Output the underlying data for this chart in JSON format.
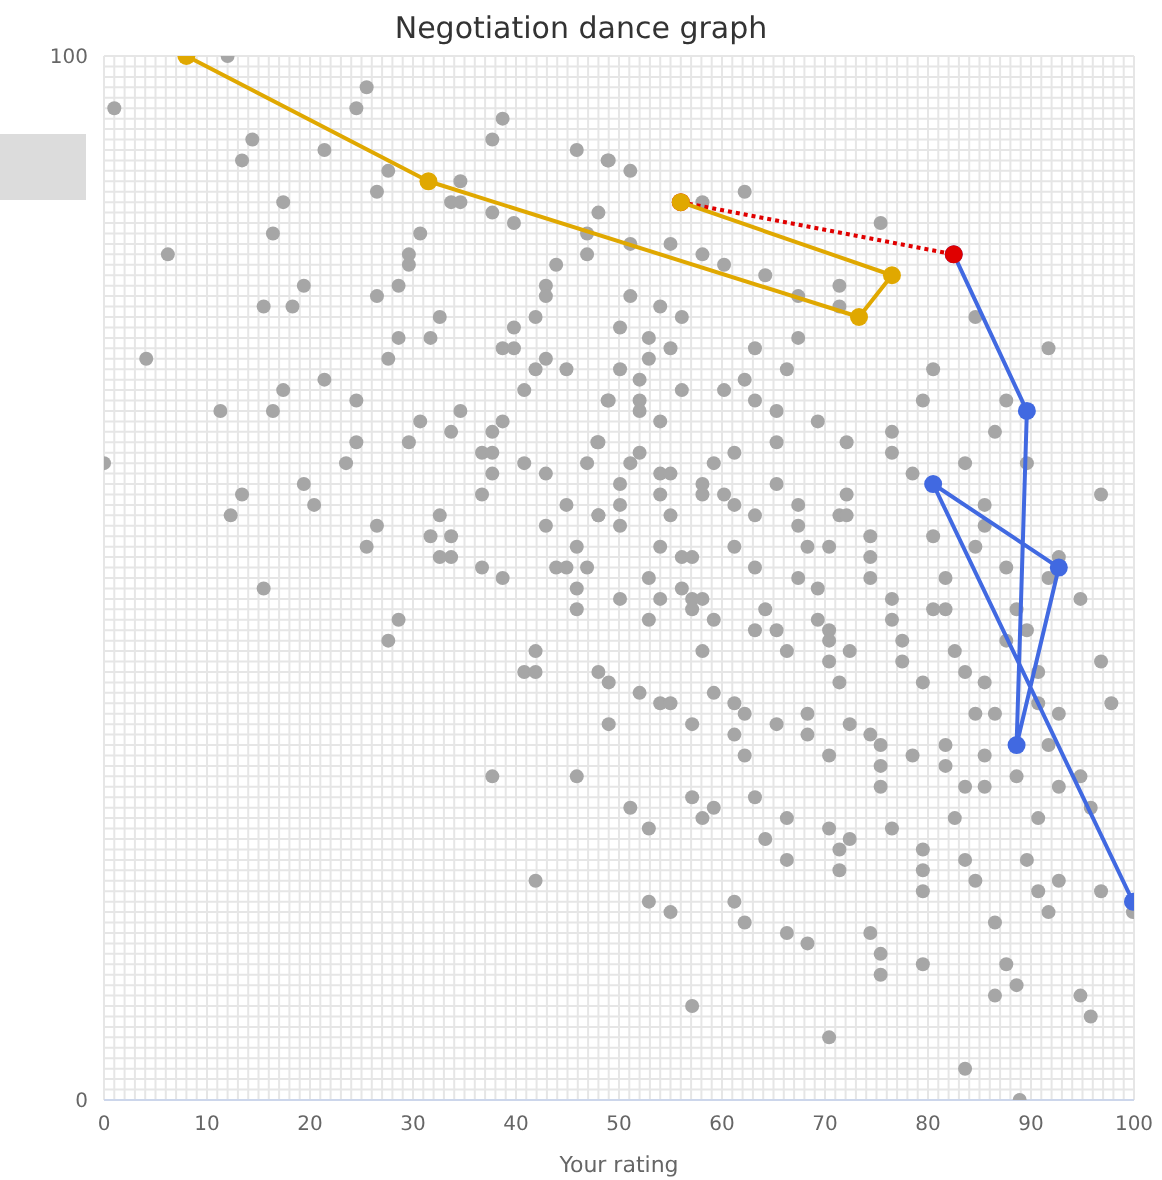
{
  "chart_data": {
    "type": "scatter",
    "title": "Negotiation dance graph",
    "xlabel": "Your rating",
    "xlim": [
      0,
      100
    ],
    "ylim": [
      0,
      100
    ],
    "grid": true,
    "legend": false,
    "marker": "circle",
    "xticks": [
      0,
      {
        "value": 1,
        "label": null
      },
      {
        "value": 2,
        "label": null
      },
      {
        "value": 3,
        "label": null
      },
      {
        "value": 4,
        "label": null
      },
      {
        "value": 5,
        "label": null
      },
      {
        "value": 6,
        "label": null
      },
      {
        "value": 7,
        "label": null
      },
      {
        "value": 8,
        "label": null
      },
      {
        "value": 9,
        "label": null
      },
      10,
      {
        "value": 11,
        "label": null
      },
      {
        "value": 12,
        "label": null
      },
      {
        "value": 13,
        "label": null
      },
      {
        "value": 14,
        "label": null
      },
      {
        "value": 15,
        "label": null
      },
      {
        "value": 16,
        "label": null
      },
      {
        "value": 17,
        "label": null
      },
      {
        "value": 18,
        "label": null
      },
      {
        "value": 19,
        "label": null
      },
      20,
      {
        "value": 21,
        "label": null
      },
      {
        "value": 22,
        "label": null
      },
      {
        "value": 23,
        "label": null
      },
      {
        "value": 24,
        "label": null
      },
      {
        "value": 25,
        "label": null
      },
      {
        "value": 26,
        "label": null
      },
      {
        "value": 27,
        "label": null
      },
      {
        "value": 28,
        "label": null
      },
      {
        "value": 29,
        "label": null
      },
      30,
      {
        "value": 31,
        "label": null
      },
      {
        "value": 32,
        "label": null
      },
      {
        "value": 33,
        "label": null
      },
      {
        "value": 34,
        "label": null
      },
      {
        "value": 35,
        "label": null
      },
      {
        "value": 36,
        "label": null
      },
      {
        "value": 37,
        "label": null
      },
      {
        "value": 38,
        "label": null
      },
      {
        "value": 39,
        "label": null
      },
      40,
      {
        "value": 41,
        "label": null
      },
      {
        "value": 42,
        "label": null
      },
      {
        "value": 43,
        "label": null
      },
      {
        "value": 44,
        "label": null
      },
      {
        "value": 45,
        "label": null
      },
      {
        "value": 46,
        "label": null
      },
      {
        "value": 47,
        "label": null
      },
      {
        "value": 48,
        "label": null
      },
      {
        "value": 49,
        "label": null
      },
      50,
      {
        "value": 51,
        "label": null
      },
      {
        "value": 52,
        "label": null
      },
      {
        "value": 53,
        "label": null
      },
      {
        "value": 54,
        "label": null
      },
      {
        "value": 55,
        "label": null
      },
      {
        "value": 56,
        "label": null
      },
      {
        "value": 57,
        "label": null
      },
      {
        "value": 58,
        "label": null
      },
      {
        "value": 59,
        "label": null
      },
      60,
      {
        "value": 61,
        "label": null
      },
      {
        "value": 62,
        "label": null
      },
      {
        "value": 63,
        "label": null
      },
      {
        "value": 64,
        "label": null
      },
      {
        "value": 65,
        "label": null
      },
      {
        "value": 66,
        "label": null
      },
      {
        "value": 67,
        "label": null
      },
      {
        "value": 68,
        "label": null
      },
      {
        "value": 69,
        "label": null
      },
      70,
      {
        "value": 71,
        "label": null
      },
      {
        "value": 72,
        "label": null
      },
      {
        "value": 73,
        "label": null
      },
      {
        "value": 74,
        "label": null
      },
      {
        "value": 75,
        "label": null
      },
      {
        "value": 76,
        "label": null
      },
      {
        "value": 77,
        "label": null
      },
      {
        "value": 78,
        "label": null
      },
      {
        "value": 79,
        "label": null
      },
      80,
      {
        "value": 81,
        "label": null
      },
      {
        "value": 82,
        "label": null
      },
      {
        "value": 83,
        "label": null
      },
      {
        "value": 84,
        "label": null
      },
      {
        "value": 85,
        "label": null
      },
      {
        "value": 86,
        "label": null
      },
      {
        "value": 87,
        "label": null
      },
      {
        "value": 88,
        "label": null
      },
      {
        "value": 89,
        "label": null
      },
      90,
      {
        "value": 91,
        "label": null
      },
      {
        "value": 92,
        "label": null
      },
      {
        "value": 93,
        "label": null
      },
      {
        "value": 94,
        "label": null
      },
      {
        "value": 95,
        "label": null
      },
      {
        "value": 96,
        "label": null
      },
      {
        "value": 97,
        "label": null
      },
      {
        "value": 98,
        "label": null
      },
      {
        "value": 99,
        "label": null
      },
      100
    ],
    "yticks": [
      0,
      {
        "value": 1,
        "label": null
      },
      {
        "value": 2,
        "label": null
      },
      {
        "value": 3,
        "label": null
      },
      {
        "value": 4,
        "label": null
      },
      {
        "value": 5,
        "label": null
      },
      {
        "value": 6,
        "label": null
      },
      {
        "value": 7,
        "label": null
      },
      {
        "value": 8,
        "label": null
      },
      {
        "value": 9,
        "label": null
      },
      {
        "value": 10,
        "label": null
      },
      {
        "value": 11,
        "label": null
      },
      {
        "value": 12,
        "label": null
      },
      {
        "value": 13,
        "label": null
      },
      {
        "value": 14,
        "label": null
      },
      {
        "value": 15,
        "label": null
      },
      {
        "value": 16,
        "label": null
      },
      {
        "value": 17,
        "label": null
      },
      {
        "value": 18,
        "label": null
      },
      {
        "value": 19,
        "label": null
      },
      {
        "value": 20,
        "label": null
      },
      {
        "value": 21,
        "label": null
      },
      {
        "value": 22,
        "label": null
      },
      {
        "value": 23,
        "label": null
      },
      {
        "value": 24,
        "label": null
      },
      {
        "value": 25,
        "label": null
      },
      {
        "value": 26,
        "label": null
      },
      {
        "value": 27,
        "label": null
      },
      {
        "value": 28,
        "label": null
      },
      {
        "value": 29,
        "label": null
      },
      {
        "value": 30,
        "label": null
      },
      {
        "value": 31,
        "label": null
      },
      {
        "value": 32,
        "label": null
      },
      {
        "value": 33,
        "label": null
      },
      {
        "value": 34,
        "label": null
      },
      {
        "value": 35,
        "label": null
      },
      {
        "value": 36,
        "label": null
      },
      {
        "value": 37,
        "label": null
      },
      {
        "value": 38,
        "label": null
      },
      {
        "value": 39,
        "label": null
      },
      {
        "value": 40,
        "label": null
      },
      {
        "value": 41,
        "label": null
      },
      {
        "value": 42,
        "label": null
      },
      {
        "value": 43,
        "label": null
      },
      {
        "value": 44,
        "label": null
      },
      {
        "value": 45,
        "label": null
      },
      {
        "value": 46,
        "label": null
      },
      {
        "value": 47,
        "label": null
      },
      {
        "value": 48,
        "label": null
      },
      {
        "value": 49,
        "label": null
      },
      {
        "value": 50,
        "label": null
      },
      {
        "value": 51,
        "label": null
      },
      {
        "value": 52,
        "label": null
      },
      {
        "value": 53,
        "label": null
      },
      {
        "value": 54,
        "label": null
      },
      {
        "value": 55,
        "label": null
      },
      {
        "value": 56,
        "label": null
      },
      {
        "value": 57,
        "label": null
      },
      {
        "value": 58,
        "label": null
      },
      {
        "value": 59,
        "label": null
      },
      {
        "value": 60,
        "label": null
      },
      {
        "value": 61,
        "label": null
      },
      {
        "value": 62,
        "label": null
      },
      {
        "value": 63,
        "label": null
      },
      {
        "value": 64,
        "label": null
      },
      {
        "value": 65,
        "label": null
      },
      {
        "value": 66,
        "label": null
      },
      {
        "value": 67,
        "label": null
      },
      {
        "value": 68,
        "label": null
      },
      {
        "value": 69,
        "label": null
      },
      {
        "value": 70,
        "label": null
      },
      {
        "value": 71,
        "label": null
      },
      {
        "value": 72,
        "label": null
      },
      {
        "value": 73,
        "label": null
      },
      {
        "value": 74,
        "label": null
      },
      {
        "value": 75,
        "label": null
      },
      {
        "value": 76,
        "label": null
      },
      {
        "value": 77,
        "label": null
      },
      {
        "value": 78,
        "label": null
      },
      {
        "value": 79,
        "label": null
      },
      {
        "value": 80,
        "label": null
      },
      {
        "value": 81,
        "label": null
      },
      {
        "value": 82,
        "label": null
      },
      {
        "value": 83,
        "label": null
      },
      {
        "value": 84,
        "label": null
      },
      {
        "value": 85,
        "label": null
      },
      {
        "value": 86,
        "label": null
      },
      {
        "value": 87,
        "label": null
      },
      {
        "value": 88,
        "label": null
      },
      {
        "value": 89,
        "label": null
      },
      {
        "value": 90,
        "label": null
      },
      {
        "value": 91,
        "label": null
      },
      {
        "value": 92,
        "label": null
      },
      {
        "value": 93,
        "label": null
      },
      {
        "value": 94,
        "label": null
      },
      {
        "value": 95,
        "label": null
      },
      {
        "value": 96,
        "label": null
      },
      {
        "value": 97,
        "label": null
      },
      {
        "value": 98,
        "label": null
      },
      {
        "value": 99,
        "label": null
      },
      100
    ],
    "series": [
      {
        "type": "scatter",
        "color": "#a6a6a6",
        "x": [
          12,
          1,
          25.5,
          24.5,
          14.4,
          13.4,
          21.4,
          38.7,
          37.7,
          45.9,
          48.9,
          27.6,
          26.5,
          34.6,
          33.7,
          34.6,
          37.7,
          39.8,
          17.4,
          16.4,
          6.2,
          46.9,
          46.9,
          43.9,
          30.7,
          29.6,
          29.6,
          19.4,
          28.6,
          26.5,
          42.9,
          42.9,
          15.5,
          18.3,
          41.9,
          32.6,
          39.8,
          28.6,
          31.7,
          38.7,
          39.8,
          27.6,
          42.9,
          41.9,
          44.9,
          4.1,
          40.8,
          21.4,
          17.4,
          24.5,
          48.9,
          11.3,
          16.4,
          34.6,
          38.7,
          30.7,
          33.7,
          37.7,
          29.6,
          24.5,
          47.9,
          36.7,
          37.7,
          0,
          23.5,
          40.8,
          46.9,
          37.7,
          42.9,
          19.4,
          13.4,
          36.7,
          20.4,
          12.3,
          32.6,
          44.9,
          48,
          26.5,
          42.9,
          31.7,
          33.7,
          25.5,
          45.9,
          32.6,
          33.7,
          36.7,
          38.7,
          43.9,
          44.9,
          46.9
        ],
        "values": [
          100,
          95,
          97,
          95,
          92,
          90,
          91,
          94,
          92,
          91,
          90,
          89,
          87,
          88,
          86,
          86,
          85,
          84,
          86,
          83,
          81,
          83,
          81,
          80,
          83,
          81,
          80,
          78,
          78,
          77,
          78,
          77,
          76,
          76,
          75,
          75,
          74,
          73,
          73,
          72,
          72,
          71,
          71,
          70,
          70,
          71,
          68,
          69,
          68,
          67,
          67,
          66,
          66,
          66,
          65,
          65,
          64,
          64,
          63,
          63,
          63,
          62,
          62,
          61,
          61,
          61,
          61,
          60,
          60,
          59,
          58,
          58,
          57,
          56,
          56,
          57,
          56,
          55,
          55,
          54,
          54,
          53,
          53,
          52,
          52,
          51,
          50,
          51,
          51,
          51
        ]
      },
      {
        "type": "scatter",
        "color": "#a6a6a6",
        "x": [
          49,
          51.1,
          48,
          58.1,
          62.2,
          75.4,
          51.1,
          55,
          58.1,
          60.2,
          64.2,
          71.4,
          67.4,
          71.4,
          51.1,
          54,
          56.1,
          50.1,
          52.9,
          52.9,
          55,
          63.2,
          67.4,
          84.6,
          91.7,
          50.1,
          52,
          66.3,
          62.2,
          80.5,
          56.1,
          60.2,
          49,
          52,
          52,
          63.2,
          54,
          65.3,
          69.3,
          79.5,
          87.6,
          86.5,
          76.5,
          76.5,
          72.1,
          65.3,
          48,
          51.1,
          52,
          59.2,
          61.2,
          83.6,
          89.6,
          78.5,
          54,
          55,
          50.1,
          58.1,
          58.1,
          60.2,
          65.3,
          54,
          72.1,
          96.8,
          50.1,
          61.2,
          67.4,
          48,
          55,
          63.2,
          71.4,
          72.1,
          85.5,
          50.1,
          67.4,
          85.5,
          80.5,
          74.4,
          54,
          56.1,
          57.1,
          61.2,
          68.3,
          70.4,
          74.4,
          84.6,
          63.2,
          87.6,
          92.7,
          91.7,
          52.9,
          67.4,
          74.4
        ],
        "values": [
          90,
          89,
          85,
          86,
          87,
          84,
          82,
          82,
          81,
          80,
          79,
          78,
          77,
          76,
          77,
          76,
          75,
          74,
          73,
          71,
          72,
          72,
          73,
          75,
          72,
          70,
          69,
          70,
          69,
          70,
          68,
          68,
          67,
          67,
          66,
          67,
          65,
          66,
          65,
          67,
          67,
          64,
          64,
          62,
          63,
          63,
          63,
          61,
          62,
          61,
          62,
          61,
          61,
          60,
          60,
          60,
          59,
          59,
          58,
          58,
          59,
          58,
          58,
          58,
          57,
          57,
          57,
          56,
          56,
          56,
          56,
          56,
          57,
          55,
          55,
          55,
          54,
          54,
          53,
          52,
          52,
          53,
          53,
          53,
          52,
          53,
          51,
          51,
          52,
          50,
          50,
          50,
          50
        ]
      },
      {
        "type": "scatter",
        "color": "#a6a6a6",
        "x": [
          15.5,
          28.6,
          27.6,
          41.9,
          40.8,
          41.9,
          37.7,
          45.9,
          41.9,
          45.9,
          45.9
        ],
        "values": [
          49,
          46,
          44,
          43,
          41,
          41,
          31,
          31,
          21,
          49,
          47
        ]
      },
      {
        "type": "scatter",
        "color": "#a6a6a6",
        "x": [
          81.7,
          50.1,
          54,
          56.1,
          57.1,
          58.1,
          57.1,
          52.9,
          59.2,
          64.2,
          69.3,
          69.3,
          70.4,
          70.4,
          63.2,
          65.3,
          76.5,
          76.5,
          77.5,
          77.5,
          80.5,
          81.7,
          88.6,
          89.6,
          87.6,
          94.8,
          82.6,
          58.1,
          66.3,
          70.4,
          72.4,
          48,
          49,
          52,
          54,
          55,
          59.2,
          61.2,
          62.2,
          49,
          57.1,
          61.2,
          62.2,
          65.3,
          68.3,
          68.3,
          71.4,
          72.4,
          74.4,
          75.4,
          75.4,
          75.4,
          70.4,
          79.5,
          83.6,
          85.5,
          84.6,
          86.5,
          81.7,
          81.7,
          78.5,
          85.5,
          83.6,
          85.5,
          88.6,
          90.7,
          90.7,
          92.7,
          91.7,
          92.7,
          94.8,
          96.8,
          97.8,
          95.8,
          51.1,
          57.1,
          59.2,
          58.1,
          63.2,
          52.9,
          66.3,
          64.2,
          66.3,
          70.4,
          71.4,
          72.4,
          71.4,
          76.5,
          79.5,
          79.5,
          79.5,
          82.6,
          83.6,
          84.6,
          90.7,
          89.6,
          90.7,
          92.7,
          91.7,
          96.8,
          99.9,
          52.9,
          55,
          61.2,
          62.2,
          66.3,
          68.3,
          74.4,
          75.4,
          75.4,
          79.5,
          86.5,
          87.6,
          88.6,
          86.5,
          94.8,
          95.8,
          57.1,
          70.4,
          83.6,
          88.9
        ],
        "values": [
          50,
          48,
          48,
          49,
          48,
          48,
          47,
          46,
          46,
          47,
          49,
          46,
          45,
          44,
          45,
          45,
          48,
          46,
          44,
          42,
          47,
          47,
          47,
          45,
          44,
          48,
          43,
          43,
          43,
          42,
          43,
          41,
          40,
          39,
          38,
          38,
          39,
          38,
          37,
          36,
          36,
          35,
          33,
          36,
          37,
          35,
          40,
          36,
          35,
          34,
          32,
          30,
          33,
          40,
          41,
          40,
          37,
          37,
          34,
          32,
          33,
          33,
          30,
          30,
          31,
          41,
          38,
          37,
          34,
          30,
          31,
          42,
          38,
          28,
          28,
          29,
          28,
          27,
          29,
          26,
          27,
          25,
          23,
          26,
          24,
          25,
          22,
          26,
          24,
          22,
          20,
          27,
          23,
          21,
          27,
          23,
          20,
          21,
          18,
          20,
          18,
          19,
          18,
          19,
          17,
          16,
          15,
          16,
          14,
          12,
          13,
          17,
          13,
          11,
          10,
          10,
          8,
          9,
          6,
          3,
          0
        ]
      },
      {
        "type": "line",
        "color": "#4169e1",
        "x": [
          82.5,
          89.6,
          88.6,
          92.7,
          80.5,
          99.9
        ],
        "values": [
          81,
          66,
          34,
          51,
          59,
          19
        ],
        "line_style": "solid"
      },
      {
        "type": "line",
        "color": "#e00000",
        "x": [
          56,
          82.5
        ],
        "values": [
          86,
          81
        ],
        "line_style": "dotted"
      },
      {
        "type": "line",
        "color": "#e0a800",
        "x": [
          8,
          31.5,
          73.3,
          76.5,
          56
        ],
        "values": [
          100,
          88,
          75,
          79,
          86
        ],
        "line_style": "solid"
      }
    ]
  }
}
